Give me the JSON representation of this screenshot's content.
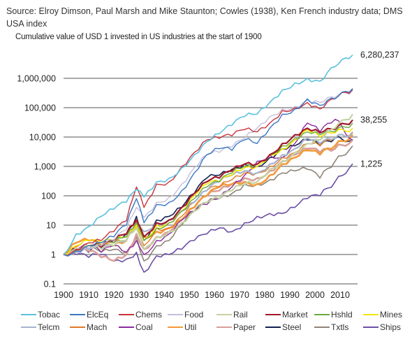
{
  "source_text": "Source: Elroy Dimson, Paul Marsh and Mike Staunton; Cowles (1938), Ken French industry data; DMS USA index",
  "chart_data": {
    "type": "line",
    "title": "Cumulative value of USD 1 invested in US industries at the start of 1900",
    "xlabel": "",
    "ylabel": "",
    "yscale": "log",
    "ylim": [
      0.1,
      6300000
    ],
    "xlim": [
      1900,
      2015
    ],
    "grid": true,
    "legend_position": "bottom",
    "x_ticks": [
      "1900",
      "1910",
      "1920",
      "1930",
      "1940",
      "1950",
      "1960",
      "1970",
      "1980",
      "1990",
      "2000",
      "2010"
    ],
    "y_ticks": [
      "0.1",
      "1",
      "10",
      "100",
      "1,000",
      "10,000",
      "100,000",
      "1,000,000"
    ],
    "y_tick_values": [
      0.1,
      1,
      10,
      100,
      1000,
      10000,
      100000,
      1000000
    ],
    "x": [
      1900,
      1905,
      1910,
      1915,
      1920,
      1925,
      1929,
      1932,
      1937,
      1942,
      1947,
      1952,
      1957,
      1962,
      1967,
      1972,
      1977,
      1982,
      1987,
      1992,
      1997,
      2002,
      2008,
      2015
    ],
    "annotations": [
      {
        "series": "Tobac",
        "text": "6,280,237",
        "value": 6280237
      },
      {
        "series": "Market",
        "text": "38,255",
        "value": 38255
      },
      {
        "series": "Ships",
        "text": "1,225",
        "value": 1225
      }
    ],
    "series": [
      {
        "name": "Tobac",
        "color": "#5bc0de",
        "width": 1.6,
        "values": [
          1,
          5,
          9,
          20,
          35,
          60,
          160,
          90,
          300,
          400,
          900,
          2500,
          7000,
          13000,
          25000,
          50000,
          60000,
          150000,
          400000,
          700000,
          1000000,
          800000,
          2500000,
          6280237
        ]
      },
      {
        "name": "ElcEq",
        "color": "#3a78c2",
        "width": 1.4,
        "values": [
          1,
          1.3,
          2,
          2.5,
          4,
          10,
          80,
          12,
          50,
          60,
          150,
          600,
          2500,
          4000,
          3500,
          8000,
          6000,
          20000,
          60000,
          90000,
          200000,
          120000,
          200000,
          450000
        ]
      },
      {
        "name": "Chems",
        "color": "#c9333b",
        "width": 1.4,
        "values": [
          1,
          1.5,
          2.5,
          3,
          6,
          14,
          200,
          40,
          250,
          300,
          1000,
          3000,
          8000,
          9000,
          11000,
          18000,
          15000,
          30000,
          80000,
          100000,
          150000,
          90000,
          200000,
          420000
        ]
      },
      {
        "name": "Food",
        "color": "#c6bedd",
        "width": 1.4,
        "values": [
          1,
          1.2,
          1.6,
          2,
          3,
          7,
          40,
          18,
          60,
          90,
          250,
          900,
          2500,
          3000,
          4500,
          9000,
          20000,
          50000,
          90000,
          110000,
          180000,
          150000,
          220000,
          380000
        ]
      },
      {
        "name": "Rail",
        "color": "#c3d3a3",
        "width": 2.2,
        "values": [
          1,
          1.6,
          2,
          1.5,
          2,
          3,
          8,
          1.5,
          4,
          6,
          12,
          30,
          60,
          80,
          150,
          250,
          300,
          800,
          1500,
          3000,
          6000,
          8000,
          20000,
          60000
        ]
      },
      {
        "name": "Market",
        "color": "#a1182c",
        "width": 2.2,
        "values": [
          1,
          1.5,
          2,
          1.8,
          3,
          5,
          15,
          4,
          12,
          15,
          40,
          120,
          300,
          400,
          700,
          1200,
          1200,
          2500,
          6000,
          12000,
          20000,
          14000,
          18000,
          38255
        ]
      },
      {
        "name": "Hshld",
        "color": "#6aaa3c",
        "width": 1.4,
        "values": [
          1,
          1.4,
          2,
          2,
          2.5,
          4,
          12,
          3,
          8,
          12,
          30,
          80,
          200,
          300,
          600,
          1000,
          1200,
          2500,
          5000,
          9000,
          15000,
          12000,
          15000,
          30000
        ]
      },
      {
        "name": "Mines",
        "color": "#f2e600",
        "width": 1.6,
        "values": [
          1,
          2,
          3,
          2.5,
          3,
          4,
          10,
          3,
          10,
          12,
          30,
          100,
          250,
          300,
          500,
          900,
          1000,
          2500,
          4000,
          8000,
          18000,
          10000,
          14000,
          20000
        ]
      },
      {
        "name": "Telcm",
        "color": "#a7b4cb",
        "width": 2.2,
        "values": [
          1,
          1.3,
          1.5,
          1.6,
          2,
          3,
          12,
          6,
          12,
          15,
          30,
          60,
          150,
          300,
          500,
          700,
          600,
          1200,
          2500,
          4000,
          9000,
          6000,
          9000,
          14000
        ]
      },
      {
        "name": "Mach",
        "color": "#e17a26",
        "width": 1.4,
        "values": [
          1,
          1.8,
          3,
          2,
          2.5,
          3,
          10,
          2,
          8,
          8,
          20,
          60,
          150,
          200,
          350,
          600,
          600,
          1000,
          2000,
          3000,
          6000,
          5000,
          9000,
          15000
        ]
      },
      {
        "name": "Coal",
        "color": "#8b2c9e",
        "width": 1.4,
        "values": [
          1,
          1.5,
          2,
          1.2,
          2,
          1.2,
          3,
          1,
          3,
          5,
          15,
          30,
          50,
          80,
          200,
          500,
          1500,
          2500,
          2000,
          6000,
          30000,
          15000,
          40000,
          8000
        ]
      },
      {
        "name": "Util",
        "color": "#f39a3a",
        "width": 2.6,
        "values": [
          1,
          2.5,
          3,
          2,
          2,
          3,
          15,
          4,
          6,
          8,
          15,
          40,
          100,
          200,
          250,
          300,
          250,
          500,
          1200,
          2000,
          3500,
          2500,
          5000,
          12000
        ]
      },
      {
        "name": "Paper",
        "color": "#d8a09a",
        "width": 2.6,
        "values": [
          1,
          1.2,
          1.3,
          0.8,
          0.6,
          1,
          5,
          1.5,
          4,
          6,
          15,
          40,
          100,
          150,
          250,
          400,
          400,
          700,
          1500,
          2500,
          4000,
          3000,
          4000,
          8000
        ]
      },
      {
        "name": "Steel",
        "color": "#14214f",
        "width": 1.6,
        "values": [
          1,
          1.5,
          1.2,
          2,
          3,
          5,
          20,
          3,
          15,
          20,
          40,
          120,
          400,
          500,
          800,
          1200,
          1000,
          2000,
          4000,
          5000,
          8000,
          5000,
          9000,
          8000
        ]
      },
      {
        "name": "Txtls",
        "color": "#8e8478",
        "width": 1.6,
        "values": [
          1,
          1.3,
          1.6,
          1.2,
          1.5,
          1.2,
          4,
          0.6,
          2,
          3,
          10,
          30,
          60,
          80,
          120,
          250,
          250,
          350,
          600,
          700,
          800,
          400,
          1500,
          5000
        ]
      },
      {
        "name": "Ships",
        "color": "#6b4fa6",
        "width": 1.6,
        "values": [
          1,
          1,
          0.8,
          1,
          0.6,
          0.7,
          1.2,
          0.25,
          0.9,
          1,
          1.5,
          3,
          5,
          8,
          6,
          12,
          20,
          25,
          25,
          40,
          80,
          100,
          300,
          1225
        ]
      }
    ]
  }
}
